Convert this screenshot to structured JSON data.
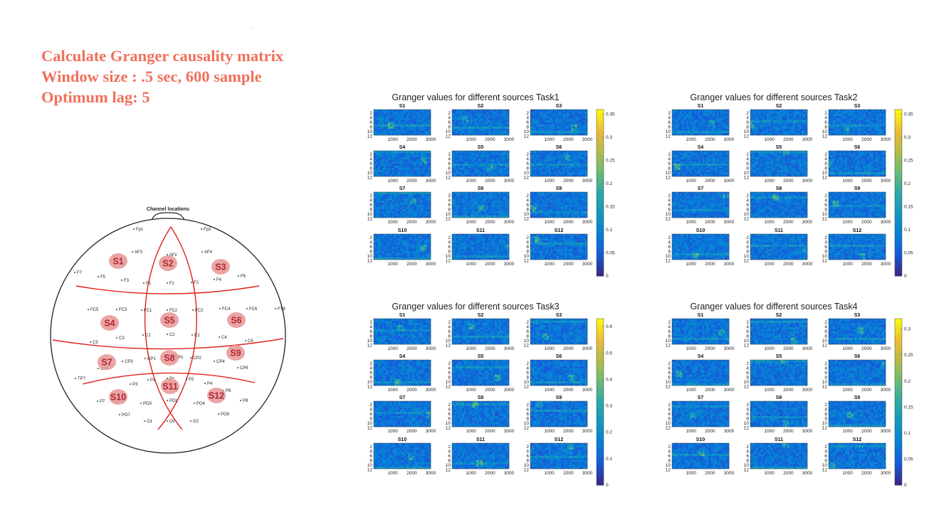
{
  "header": {
    "line1": "Calculate Granger causality matrix",
    "line2": "Window size : .5 sec, 600 sample",
    "line3": "Optimum lag: 5"
  },
  "head_map": {
    "title": "Channel locations",
    "electrodes": [
      "Fp1",
      "Fp2",
      "AF3",
      "AFz",
      "AF4",
      "F7",
      "F5",
      "F3",
      "F1",
      "Fz",
      "F2",
      "F4",
      "F6",
      "FC5",
      "FC3",
      "FC1",
      "FCz",
      "FC2",
      "FC4",
      "FC6",
      "FT8",
      "C5",
      "C3",
      "C1",
      "Cz",
      "C2",
      "C4",
      "C6",
      "TP7",
      "CP5",
      "CP3",
      "CP1",
      "CPz",
      "CP2",
      "CP4",
      "CP6",
      "P3",
      "P1",
      "Pz",
      "P2",
      "P4",
      "P6",
      "P7",
      "P8",
      "PO7",
      "PO3",
      "POz",
      "PO4",
      "PO8",
      "O1",
      "Oz",
      "O2"
    ],
    "sources": [
      "S1",
      "S2",
      "S3",
      "S4",
      "S5",
      "S6",
      "S7",
      "S8",
      "S9",
      "S10",
      "S11",
      "S12"
    ]
  },
  "colors": {
    "title": "#f0705a",
    "region_line": "#e0201c",
    "source_fill": "#e89a9a",
    "source_text": "#b02a36"
  },
  "chart_data": [
    {
      "type": "heatmap",
      "title": "Granger values for different sources Task1",
      "panels": [
        "S1",
        "S2",
        "S3",
        "S4",
        "S5",
        "S6",
        "S7",
        "S8",
        "S9",
        "S10",
        "S11",
        "S12"
      ],
      "x_ticks": [
        "1000",
        "2000",
        "3000"
      ],
      "y_ticks": [
        "2",
        "4",
        "6",
        "8",
        "10",
        "12"
      ],
      "xlim": [
        0,
        3000
      ],
      "ylim": [
        1,
        12
      ],
      "colorbar_ticks": [
        "0.35",
        "0.3",
        "0.25",
        "0.2",
        "0.15",
        "0.1",
        "0.05",
        "0"
      ],
      "color_range": [
        0,
        0.36
      ]
    },
    {
      "type": "heatmap",
      "title": "Granger values for different sources Task2",
      "panels": [
        "S1",
        "S2",
        "S3",
        "S4",
        "S5",
        "S6",
        "S7",
        "S8",
        "S9",
        "S10",
        "S11",
        "S12"
      ],
      "x_ticks": [
        "1000",
        "2000",
        "3000"
      ],
      "y_ticks": [
        "2",
        "4",
        "6",
        "8",
        "10",
        "12"
      ],
      "xlim": [
        0,
        3000
      ],
      "ylim": [
        1,
        12
      ],
      "colorbar_ticks": [
        "0.35",
        "0.3",
        "0.25",
        "0.2",
        "0.15",
        "0.1",
        "0.05",
        "0"
      ],
      "color_range": [
        0,
        0.36
      ]
    },
    {
      "type": "heatmap",
      "title": "Granger values for different sources Task3",
      "panels": [
        "S1",
        "S2",
        "S3",
        "S4",
        "S5",
        "S6",
        "S7",
        "S8",
        "S9",
        "S10",
        "S11",
        "S12"
      ],
      "x_ticks": [
        "1000",
        "2000",
        "3000"
      ],
      "y_ticks": [
        "2",
        "4",
        "6",
        "8",
        "10",
        "12"
      ],
      "xlim": [
        0,
        3000
      ],
      "ylim": [
        1,
        12
      ],
      "colorbar_ticks": [
        "0.6",
        "0.5",
        "0.4",
        "0.3",
        "0.2",
        "0.1",
        "0"
      ],
      "color_range": [
        0,
        0.63
      ]
    },
    {
      "type": "heatmap",
      "title": "Granger values for different sources Task4",
      "panels": [
        "S1",
        "S2",
        "S3",
        "S4",
        "S5",
        "S6",
        "S7",
        "S8",
        "S9",
        "S10",
        "S11",
        "S12"
      ],
      "x_ticks": [
        "1000",
        "2000",
        "3000"
      ],
      "y_ticks": [
        "2",
        "4",
        "6",
        "8",
        "10",
        "12"
      ],
      "xlim": [
        0,
        3000
      ],
      "ylim": [
        1,
        12
      ],
      "colorbar_ticks": [
        "0.3",
        "0.25",
        "0.2",
        "0.15",
        "0.1",
        "0.05",
        "0"
      ],
      "color_range": [
        0,
        0.32
      ]
    }
  ]
}
